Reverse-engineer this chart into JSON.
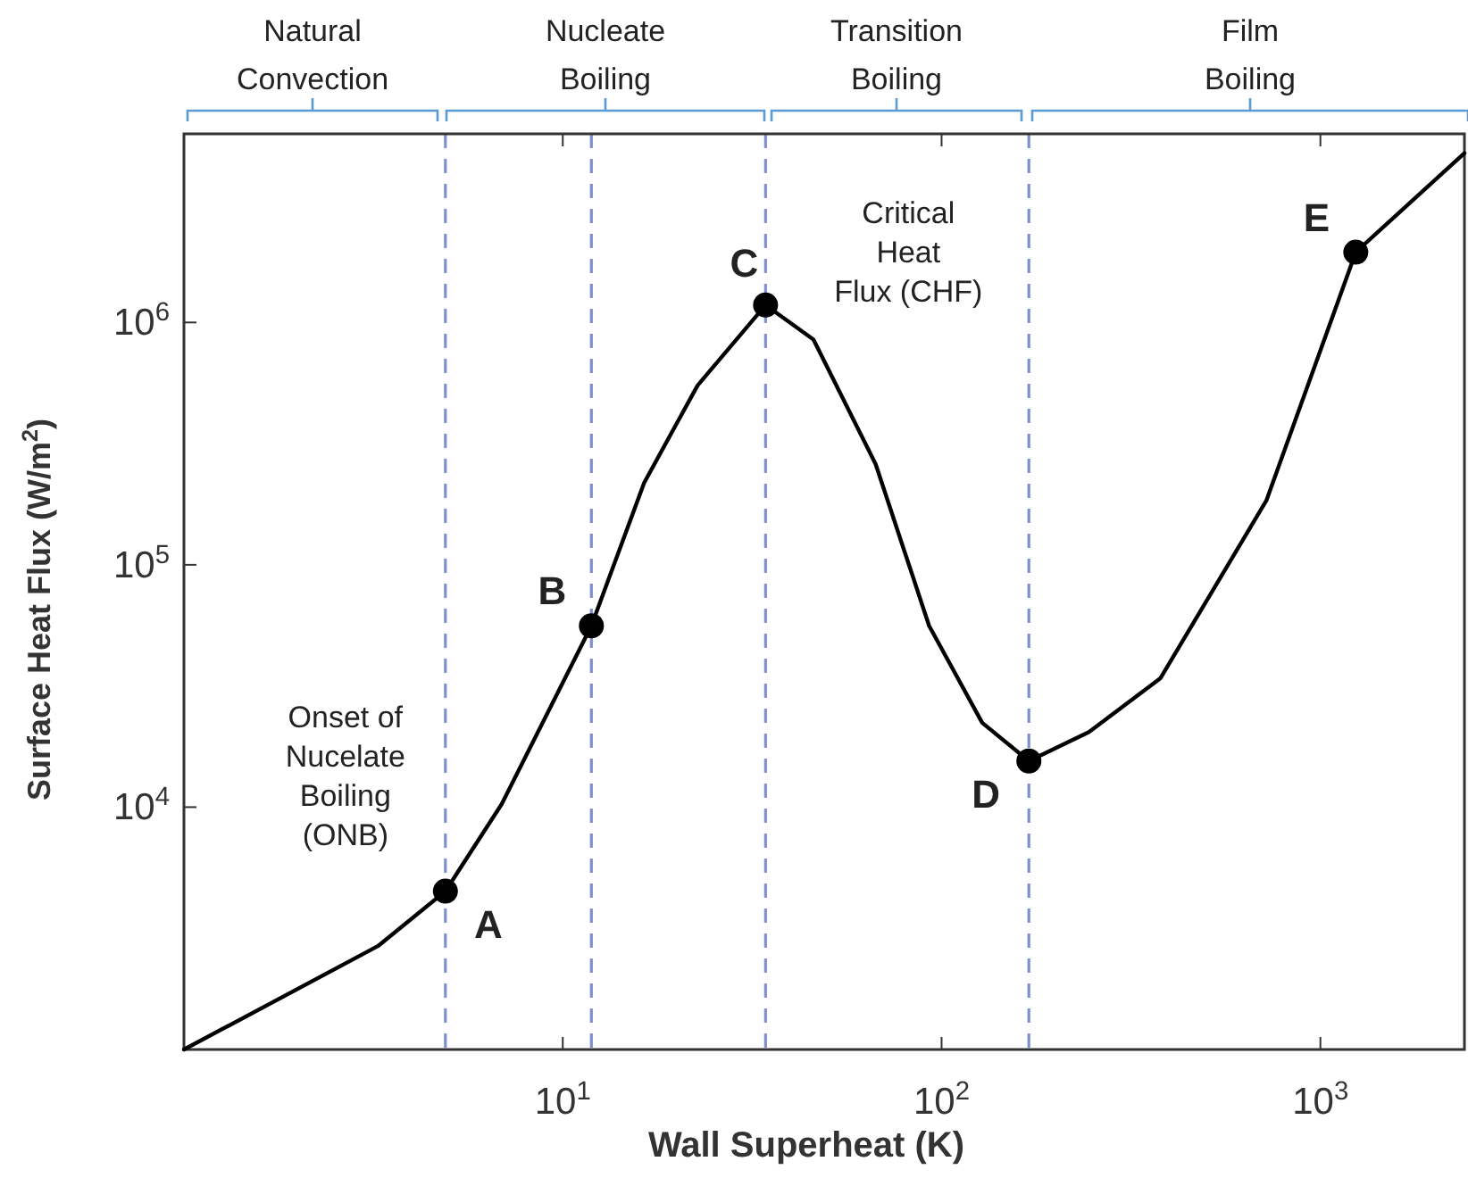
{
  "chart_data": {
    "type": "line",
    "xlabel": "Wall Superheat (K)",
    "ylabel": "Surface Heat Flux (W/m$^{2}$)",
    "log": "xy",
    "xlim": [
      1,
      2400
    ],
    "ylim": [
      1000,
      6000000
    ],
    "xticks": [
      {
        "value": 10,
        "label": "10$^{1}$"
      },
      {
        "value": 100,
        "label": "10$^{2}$"
      },
      {
        "value": 1000,
        "label": "10$^{3}$"
      }
    ],
    "yticks": [
      {
        "value": 10000,
        "label": "10$^{4}$"
      },
      {
        "value": 100000,
        "label": "10$^{5}$"
      },
      {
        "value": 1000000,
        "label": "10$^{6}$"
      }
    ],
    "grid": false,
    "series": [
      {
        "color": "#000000",
        "marker": "none",
        "line_style": "solid",
        "x": [
          1,
          3.25,
          4.9,
          6.9,
          11.9,
          16.4,
          22.7,
          34.3,
          45.9,
          67,
          92.7,
          128,
          170,
          245,
          378,
          720,
          1240,
          2400
        ],
        "values": [
          1000,
          2670,
          4500,
          10300,
          56000,
          218000,
          550000,
          1180000,
          850000,
          260000,
          56000,
          22300,
          15500,
          20400,
          34000,
          184000,
          1950000,
          5000000
        ]
      },
      {
        "type": "scatter",
        "color": "#000000",
        "marker": "circle",
        "x": [
          4.9,
          11.9,
          34.3,
          170,
          1240
        ],
        "values": [
          4500,
          56000,
          1180000,
          15500,
          1950000
        ]
      }
    ],
    "ref_lines": [
      {
        "axis": "x",
        "value": 4.9,
        "color": "#7f8fd0",
        "line_style": "dashed"
      },
      {
        "axis": "x",
        "value": 11.9,
        "color": "#7f8fd0",
        "line_style": "dashed"
      },
      {
        "axis": "x",
        "value": 34.3,
        "color": "#7f8fd0",
        "line_style": "dashed"
      },
      {
        "axis": "x",
        "value": 170,
        "color": "#7f8fd0",
        "line_style": "dashed"
      }
    ],
    "annotations": [
      "Natural\nConvection",
      "Nucleate\nBoiling",
      "Transition\nBoiling",
      "Film\nBoiling",
      {
        "text": "A",
        "x": 4.9,
        "y": 4500
      },
      {
        "text": "B",
        "x": 11.9,
        "y": 56000
      },
      {
        "text": "C",
        "x": 34.3,
        "y": 1180000
      },
      {
        "text": "D",
        "x": 170,
        "y": 15500
      },
      {
        "text": "E",
        "x": 1240,
        "y": 1950000
      },
      {
        "text": "Onset of\nNucelate\nBoiling\n(ONB)",
        "x": 4.9,
        "y": 4500
      },
      {
        "text": "Critical\nHeat\nFlux (CHF)",
        "x": 34.3,
        "y": 1180000
      }
    ]
  }
}
